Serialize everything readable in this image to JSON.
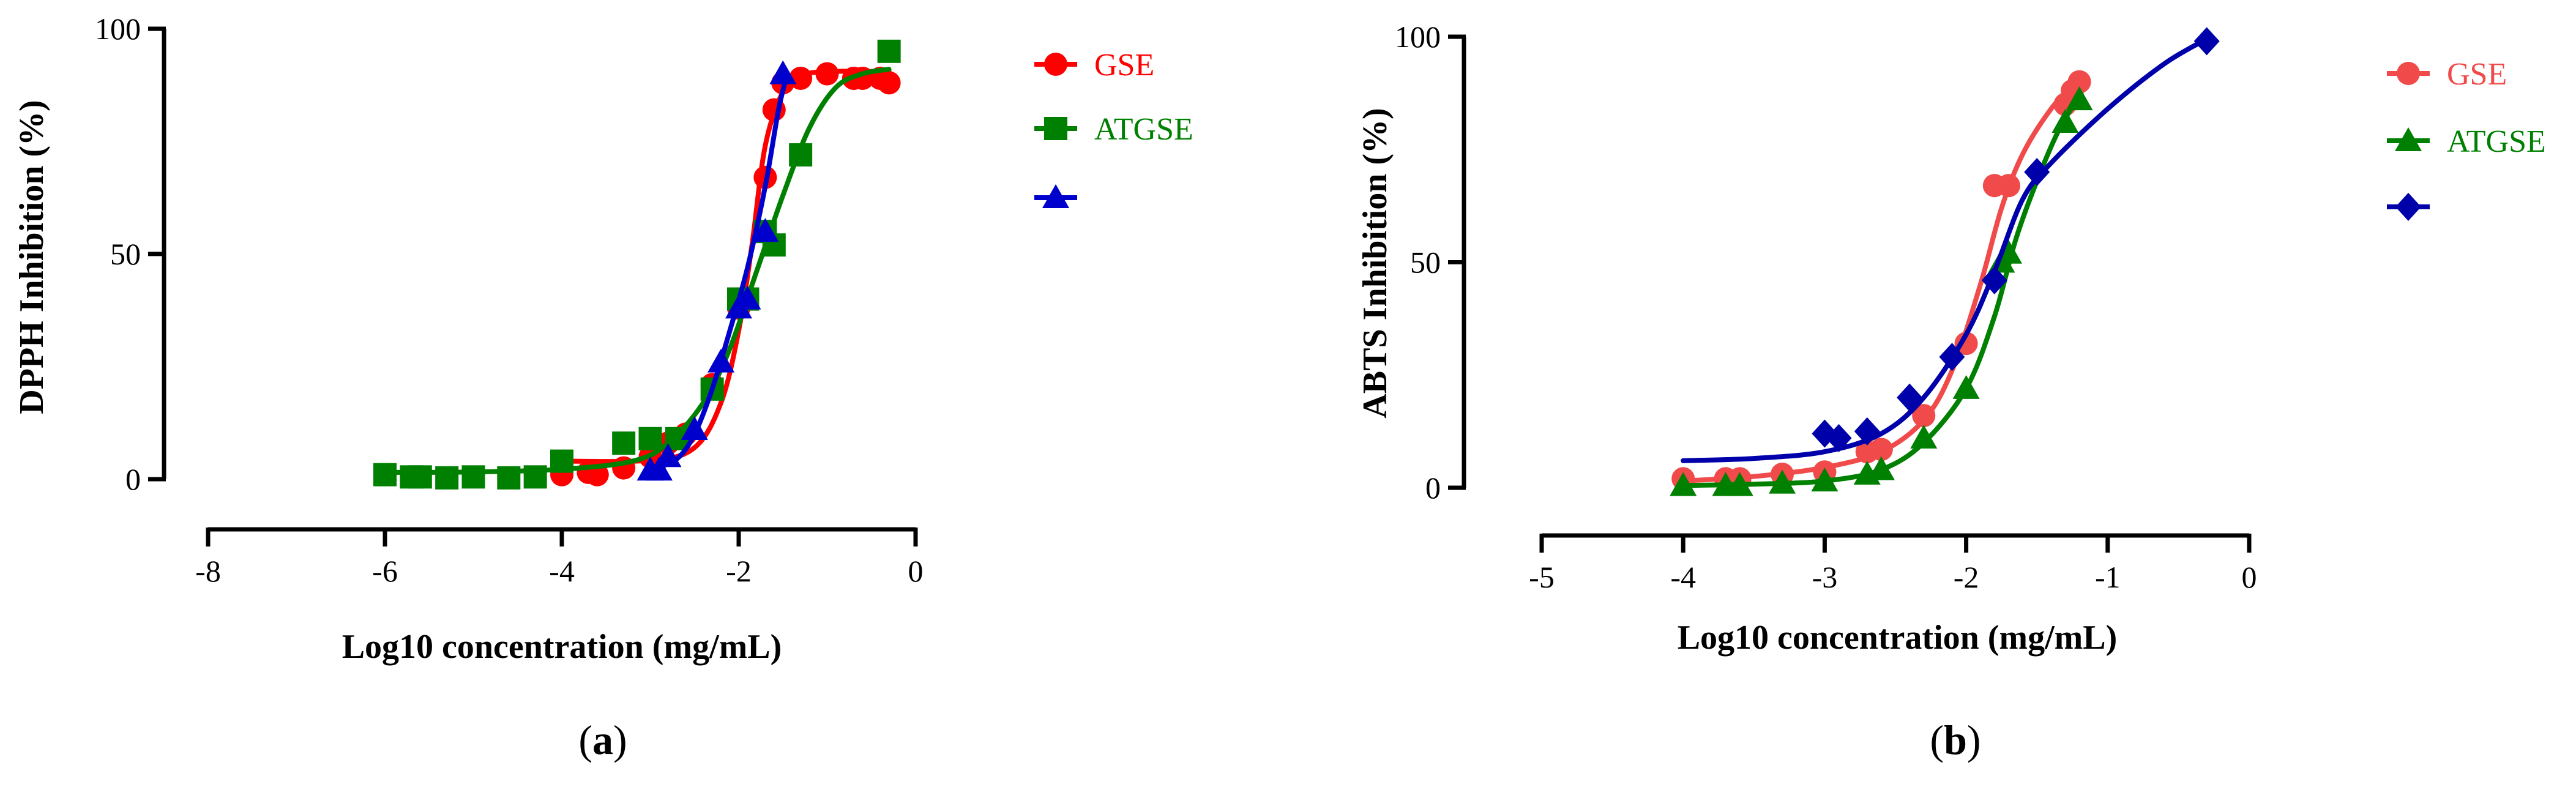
{
  "chart_data": [
    {
      "type": "line",
      "caption": "a",
      "xlabel": "Log10 concentration (mg/mL)",
      "ylabel": "DPPH Inhibition (%)",
      "xlim": [
        -8,
        0
      ],
      "ylim": [
        0,
        100
      ],
      "xticks": [
        "-8",
        "-6",
        "-4",
        "-2",
        "0"
      ],
      "yticks": [
        "0",
        "50",
        "100"
      ],
      "legend_position": "right",
      "series": [
        {
          "name": "GSE",
          "color": "#ff0000",
          "marker": "circle",
          "x": [
            -4.0,
            -3.7,
            -3.6,
            -3.3,
            -3.0,
            -2.8,
            -2.7,
            -2.6,
            -2.3,
            -2.0,
            -1.9,
            -1.7,
            -1.6,
            -1.5,
            -1.3,
            -1.0,
            -0.7,
            -0.6,
            -0.4,
            -0.3
          ],
          "y": [
            1,
            1.5,
            1,
            2.5,
            5,
            8,
            9,
            10,
            21,
            38,
            40,
            67,
            82,
            88,
            89,
            90,
            89,
            89,
            89,
            88
          ],
          "fit": [
            [
              -4.0,
              4.0
            ],
            [
              -3.0,
              4.2
            ],
            [
              -2.5,
              7
            ],
            [
              -2.2,
              17
            ],
            [
              -2.0,
              33
            ],
            [
              -1.85,
              52
            ],
            [
              -1.7,
              74
            ],
            [
              -1.5,
              86
            ],
            [
              -1.3,
              89.5
            ],
            [
              -1.0,
              90.5
            ],
            [
              -0.3,
              90.5
            ]
          ]
        },
        {
          "name": "ATGSE",
          "color": "#008000",
          "marker": "square",
          "x": [
            -6.0,
            -5.7,
            -5.6,
            -5.3,
            -5.0,
            -4.6,
            -4.3,
            -4.0,
            -3.3,
            -3.0,
            -2.7,
            -2.3,
            -2.0,
            -1.9,
            -1.7,
            -1.6,
            -1.3,
            -0.3
          ],
          "y": [
            1,
            0.5,
            0.5,
            0.3,
            0.5,
            0.3,
            0.5,
            4,
            8,
            9,
            9,
            20,
            40,
            40,
            55,
            52,
            72,
            95
          ],
          "fit": [
            [
              -6.0,
              1.5
            ],
            [
              -5.0,
              1.6
            ],
            [
              -4.0,
              2.2
            ],
            [
              -3.2,
              4
            ],
            [
              -2.8,
              8
            ],
            [
              -2.4,
              17
            ],
            [
              -2.1,
              29
            ],
            [
              -1.8,
              46
            ],
            [
              -1.5,
              63
            ],
            [
              -1.2,
              78
            ],
            [
              -0.9,
              87
            ],
            [
              -0.6,
              90
            ],
            [
              -0.3,
              91
            ]
          ]
        },
        {
          "name": "",
          "color": "#0000cd",
          "marker": "triangle",
          "x": [
            -3.0,
            -2.9,
            -2.8,
            -2.5,
            -2.2,
            -2.0,
            -1.9,
            -1.7,
            -1.5
          ],
          "y": [
            2,
            2,
            5,
            11,
            26,
            38,
            40,
            55,
            90
          ],
          "fit": [
            [
              -3.0,
              2
            ],
            [
              -2.7,
              4.5
            ],
            [
              -2.5,
              10
            ],
            [
              -2.3,
              20
            ],
            [
              -2.1,
              33
            ],
            [
              -1.9,
              47
            ],
            [
              -1.7,
              65
            ],
            [
              -1.55,
              82
            ],
            [
              -1.45,
              90
            ]
          ]
        }
      ]
    },
    {
      "type": "line",
      "caption": "b",
      "xlabel": "Log10 concentration (mg/mL)",
      "ylabel": "ABTS Inhibition (%)",
      "xlim": [
        -5,
        0
      ],
      "ylim": [
        0,
        100
      ],
      "xticks": [
        "-5",
        "-4",
        "-3",
        "-2",
        "-1",
        "0"
      ],
      "yticks": [
        "0",
        "50",
        "100"
      ],
      "legend_position": "right",
      "series": [
        {
          "name": "GSE",
          "color": "#f04a4a",
          "marker": "circle",
          "x": [
            -4.0,
            -3.7,
            -3.6,
            -3.3,
            -3.0,
            -2.7,
            -2.6,
            -2.3,
            -2.0,
            -1.8,
            -1.7,
            -1.3,
            -1.25,
            -1.2
          ],
          "y": [
            2,
            2,
            2,
            3,
            3.5,
            8,
            8.5,
            16,
            32,
            67,
            67,
            85,
            88,
            90
          ],
          "fit": [
            [
              -4.0,
              1.5
            ],
            [
              -3.5,
              2.5
            ],
            [
              -3.0,
              4.5
            ],
            [
              -2.6,
              8
            ],
            [
              -2.3,
              15
            ],
            [
              -2.1,
              26
            ],
            [
              -1.9,
              45
            ],
            [
              -1.75,
              62
            ],
            [
              -1.6,
              74
            ],
            [
              -1.4,
              84
            ],
            [
              -1.2,
              91
            ]
          ]
        },
        {
          "name": "ATGSE",
          "color": "#008000",
          "marker": "triangle",
          "x": [
            -4.0,
            -3.7,
            -3.6,
            -3.3,
            -3.0,
            -2.7,
            -2.6,
            -2.3,
            -2.0,
            -1.75,
            -1.7,
            -1.3,
            -1.2
          ],
          "y": [
            0.5,
            0.5,
            0.5,
            1,
            1.5,
            3,
            4,
            11,
            22,
            50,
            52,
            81,
            86
          ],
          "fit": [
            [
              -4.0,
              0.5
            ],
            [
              -3.5,
              0.8
            ],
            [
              -3.0,
              1.5
            ],
            [
              -2.6,
              4
            ],
            [
              -2.3,
              10
            ],
            [
              -2.0,
              22
            ],
            [
              -1.8,
              38
            ],
            [
              -1.65,
              55
            ],
            [
              -1.5,
              68
            ],
            [
              -1.35,
              79
            ],
            [
              -1.2,
              87
            ]
          ]
        },
        {
          "name": "",
          "color": "#0000aa",
          "marker": "diamond",
          "x": [
            -3.0,
            -2.9,
            -2.7,
            -2.4,
            -2.1,
            -1.8,
            -1.5,
            -0.3
          ],
          "y": [
            12,
            11,
            12.5,
            20,
            29,
            46,
            70,
            99
          ],
          "fit": [
            [
              -4.0,
              6
            ],
            [
              -3.5,
              6.5
            ],
            [
              -3.0,
              8
            ],
            [
              -2.6,
              12
            ],
            [
              -2.3,
              20
            ],
            [
              -2.0,
              34
            ],
            [
              -1.8,
              48
            ],
            [
              -1.6,
              64
            ],
            [
              -1.4,
              72
            ],
            [
              -1.0,
              84
            ],
            [
              -0.6,
              94
            ],
            [
              -0.3,
              99.5
            ]
          ]
        }
      ]
    }
  ]
}
